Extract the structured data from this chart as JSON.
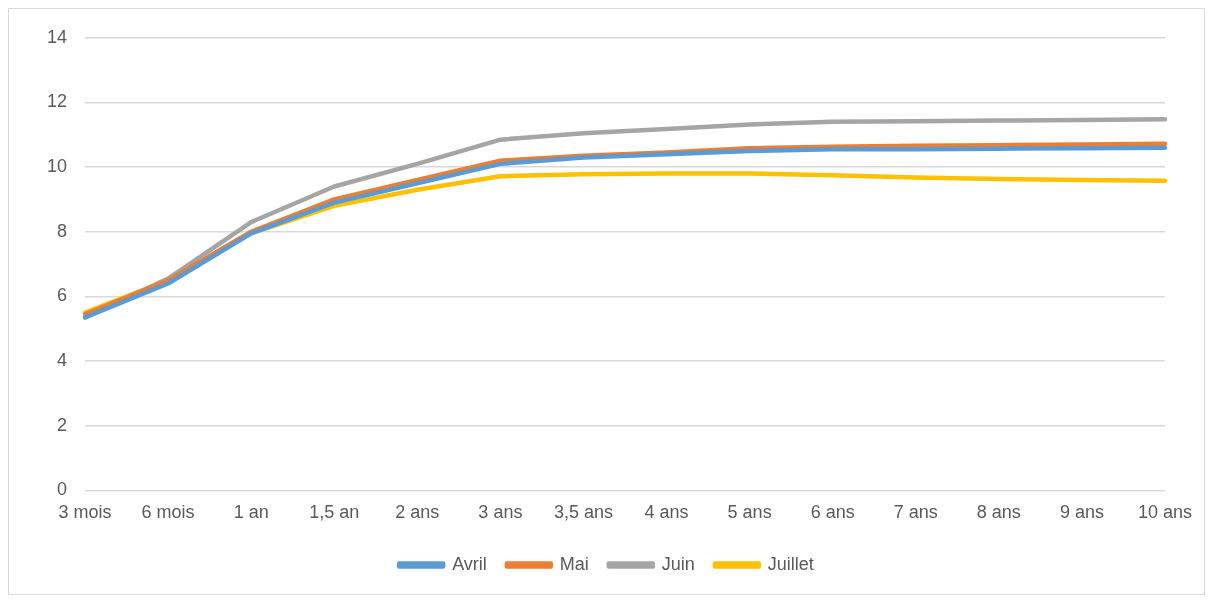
{
  "chart_data": {
    "type": "line",
    "categories": [
      "3 mois",
      "6 mois",
      "1 an",
      "1,5 an",
      "2 ans",
      "3 ans",
      "3,5 ans",
      "4 ans",
      "5 ans",
      "6 ans",
      "7 ans",
      "8 ans",
      "9 ans",
      "10 ans"
    ],
    "series": [
      {
        "name": "Avril",
        "color": "#5b9bd5",
        "values": [
          5.35,
          6.4,
          7.95,
          8.9,
          9.5,
          10.1,
          10.3,
          10.4,
          10.5,
          10.55,
          10.55,
          10.57,
          10.58,
          10.6
        ]
      },
      {
        "name": "Mai",
        "color": "#ed7d31",
        "values": [
          5.45,
          6.5,
          8.0,
          9.0,
          9.6,
          10.2,
          10.35,
          10.45,
          10.58,
          10.63,
          10.66,
          10.68,
          10.7,
          10.72
        ]
      },
      {
        "name": "Juin",
        "color": "#a5a5a5",
        "values": [
          5.35,
          6.55,
          8.3,
          9.4,
          10.1,
          10.85,
          11.05,
          11.18,
          11.32,
          11.4,
          11.42,
          11.44,
          11.46,
          11.48
        ]
      },
      {
        "name": "Juillet",
        "color": "#ffc000",
        "values": [
          5.5,
          6.5,
          7.95,
          8.8,
          9.3,
          9.72,
          9.78,
          9.8,
          9.8,
          9.75,
          9.68,
          9.63,
          9.6,
          9.58
        ]
      }
    ],
    "ylim": [
      0,
      14
    ],
    "yticks": [
      0,
      2,
      4,
      6,
      8,
      10,
      12,
      14
    ],
    "grid": "y",
    "legend": "bottom",
    "marker": "none",
    "line_style": "solid"
  }
}
